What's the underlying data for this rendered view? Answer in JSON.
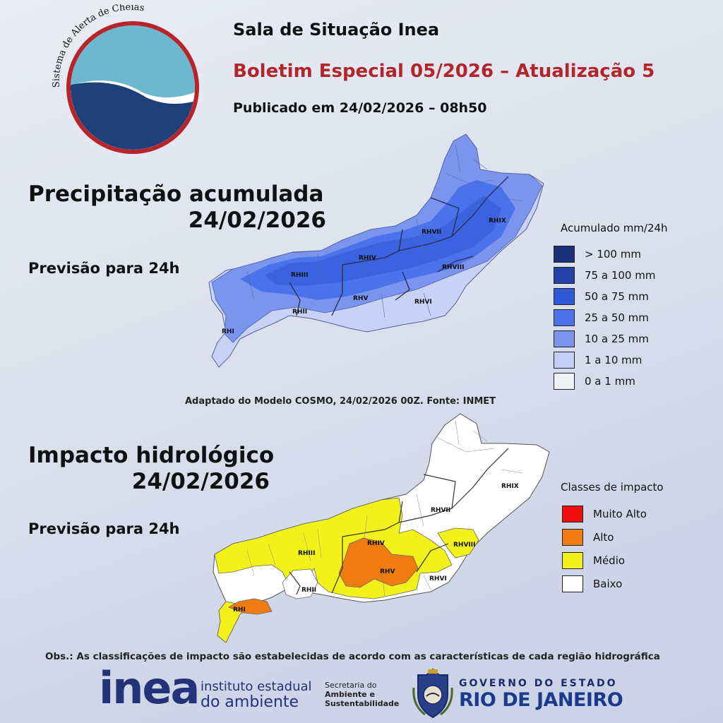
{
  "header": {
    "logo_text": "Sistema de Alerta de Cheias",
    "title": "Sala de Situação Inea",
    "bulletin": "Boletim Especial 05/2026 – Atualização 5",
    "published": "Publicado em 24/02/2026 – 08h50"
  },
  "precipitation": {
    "title": "Precipitação acumulada",
    "date": "24/02/2026",
    "forecast": "Previsão para 24h",
    "legend_title": "Acumulado mm/24h",
    "legend": [
      {
        "label": "> 100 mm",
        "color": "#1b2f7a"
      },
      {
        "label": "75 a 100 mm",
        "color": "#2342a8"
      },
      {
        "label": "50 a 75 mm",
        "color": "#2f58d6"
      },
      {
        "label": "25 a 50 mm",
        "color": "#4a72ea"
      },
      {
        "label": "10 a 25 mm",
        "color": "#7b95ee"
      },
      {
        "label": "1 a 10 mm",
        "color": "#c4cff5"
      },
      {
        "label": "0 a 1 mm",
        "color": "#f2f3f7"
      }
    ],
    "source": "Adaptado do Modelo COSMO, 24/02/2026 00Z. Fonte: INMET"
  },
  "impact": {
    "title": "Impacto hidrológico",
    "date": "24/02/2026",
    "forecast": "Previsão para 24h",
    "legend_title": "Classes de impacto",
    "legend": [
      {
        "label": "Muito Alto",
        "color": "#ee1010"
      },
      {
        "label": "Alto",
        "color": "#f07c10"
      },
      {
        "label": "Médio",
        "color": "#f2f21a"
      },
      {
        "label": "Baixo",
        "color": "#ffffff"
      }
    ]
  },
  "regions": {
    "r1": "RHI",
    "r2": "RHII",
    "r3": "RHIII",
    "r4": "RHIV",
    "r5": "RHV",
    "r6": "RHVI",
    "r7": "RHVII",
    "r8": "RHVIII",
    "r9": "RHIX"
  },
  "note": "Obs.: As classificações de impacto são estabelecidas de acordo com as características de cada região hidrográfica",
  "footer": {
    "inea_word": "inea",
    "inea_line1": "instituto estadual",
    "inea_line2": "do ambiente",
    "secretaria_1": "Secretaria do",
    "secretaria_2": "Ambiente e",
    "secretaria_3": "Sustentabilidade",
    "gov_line1": "GOVERNO DO ESTADO",
    "gov_line2": "RIO DE JANEIRO"
  }
}
